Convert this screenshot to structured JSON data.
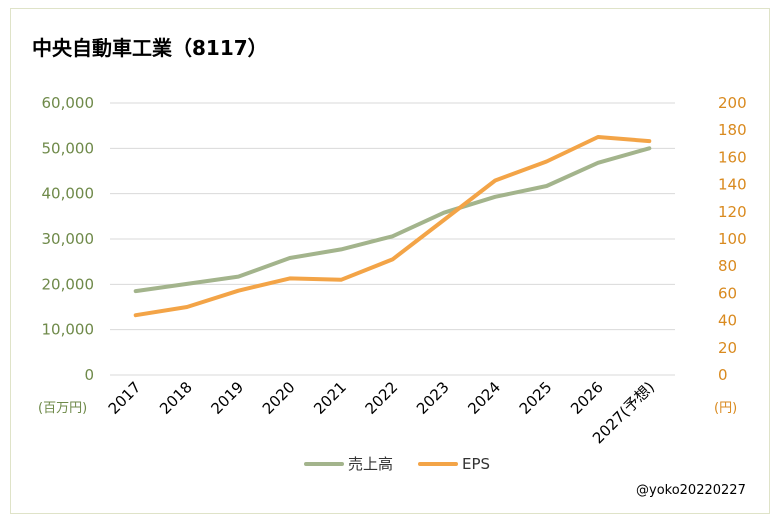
{
  "title": "中央自動車工業（8117）",
  "credit": "@yoko20220227",
  "colors": {
    "sales": "#a3b48c",
    "eps": "#f3a447",
    "grid": "#d9d9d9"
  },
  "chart_data": {
    "type": "line",
    "title": "中央自動車工業（8117）",
    "categories": [
      "2017",
      "2018",
      "2019",
      "2020",
      "2021",
      "2022",
      "2023",
      "2024",
      "2025",
      "2026",
      "2027(予想)"
    ],
    "series": [
      {
        "name": "売上高",
        "axis": "left",
        "values": [
          18500,
          20100,
          21700,
          25800,
          27700,
          30600,
          35800,
          39300,
          41700,
          46800,
          50000
        ]
      },
      {
        "name": "EPS",
        "axis": "right",
        "values": [
          44,
          50,
          62,
          71,
          70,
          85,
          114,
          143,
          157,
          175,
          172
        ]
      }
    ],
    "y_left": {
      "min": 0,
      "max": 60000,
      "step": 10000,
      "ticks": [
        "0",
        "10,000",
        "20,000",
        "30,000",
        "40,000",
        "50,000",
        "60,000"
      ],
      "unit": "(百万円)"
    },
    "y_right": {
      "min": 0,
      "max": 200,
      "step": 20,
      "ticks": [
        "0",
        "20",
        "40",
        "60",
        "80",
        "100",
        "120",
        "140",
        "160",
        "180",
        "200"
      ],
      "unit": "(円)"
    },
    "grid": true,
    "legend": "bottom"
  }
}
